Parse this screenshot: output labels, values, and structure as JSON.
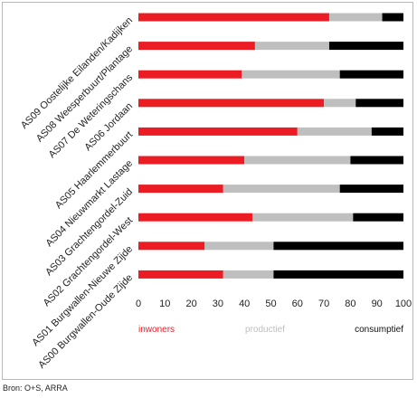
{
  "chart_data": {
    "type": "bar",
    "stacked": true,
    "orientation": "horizontal",
    "categories": [
      "AS09 Oostelijke Eilanden/Kadijken",
      "AS08 Weesperbuurt/Plantage",
      "AS07 De Weteringschans",
      "AS06 Jordaan",
      "AS05 Haarlemmerbuurt",
      "AS04 Nieuwmarkt Lastage",
      "AS03 Grachtengordel-Zuid",
      "AS02 Grachtengordel-West",
      "AS01 Burgwallen-Nieuwe Zijde",
      "AS00 Burgwallen-Oude Zijde"
    ],
    "series": [
      {
        "name": "inwoners",
        "color": "#ec1c24",
        "values": [
          72,
          44,
          39,
          70,
          60,
          40,
          32,
          43,
          25,
          32
        ]
      },
      {
        "name": "productief",
        "color": "#bfbfbf",
        "values": [
          20,
          28,
          37,
          12,
          28,
          40,
          44,
          38,
          26,
          19
        ]
      },
      {
        "name": "consumptief",
        "color": "#000000",
        "values": [
          8,
          28,
          24,
          18,
          12,
          20,
          24,
          19,
          49,
          49
        ]
      }
    ],
    "xlim": [
      0,
      100
    ],
    "xticks": [
      "0",
      "10",
      "20",
      "30",
      "40",
      "50",
      "60",
      "70",
      "80",
      "90",
      "100"
    ],
    "grid": false,
    "legend_position": "bottom"
  },
  "source": "Bron: O+S, ARRA"
}
